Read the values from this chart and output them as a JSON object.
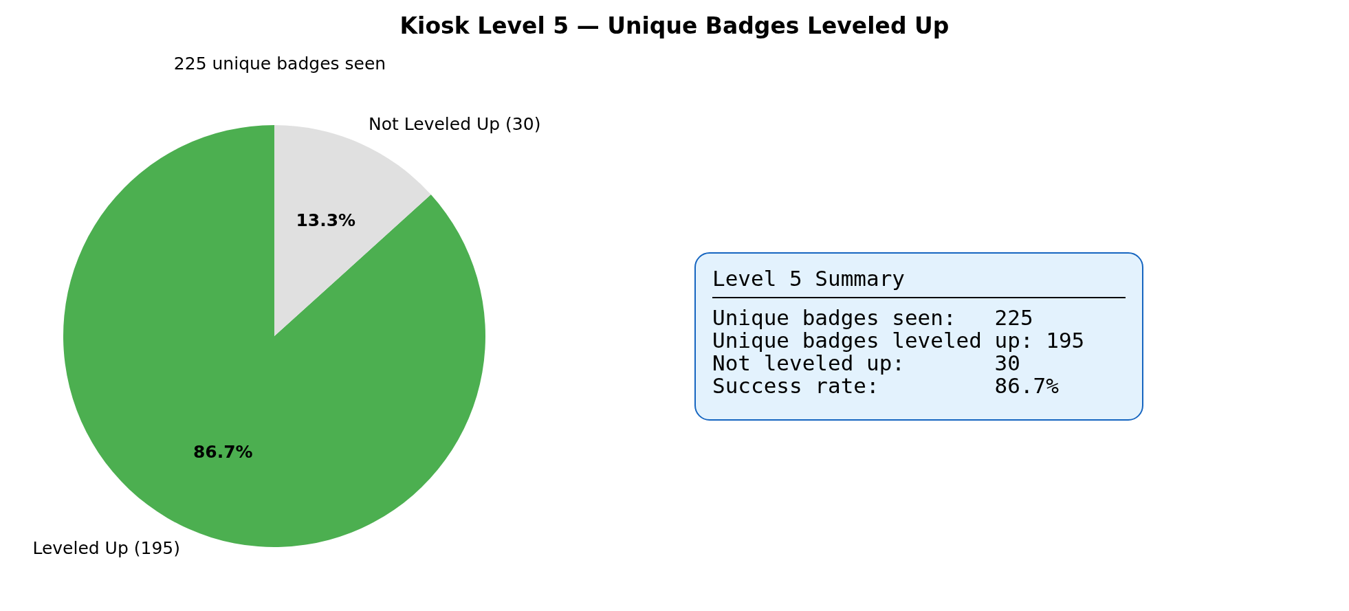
{
  "chart_data": [
    {
      "type": "pie",
      "title": "Kiosk Level 5 — Unique Badges Leveled Up",
      "subtitle": "225 unique badges seen",
      "categories": [
        "Leveled Up (195)",
        "Not Leveled Up (30)"
      ],
      "values": [
        86.7,
        13.3
      ],
      "colors": [
        "#4caf50",
        "#e0e0e0"
      ],
      "value_labels": [
        "86.7%",
        "13.3%"
      ]
    },
    {
      "type": "other",
      "title": "Level 5 Summary",
      "annotations": [
        "Unique badges seen:   225",
        "Unique badges leveled up: 195",
        "Not leveled up:       30",
        "Success rate:         86.7%"
      ]
    }
  ]
}
